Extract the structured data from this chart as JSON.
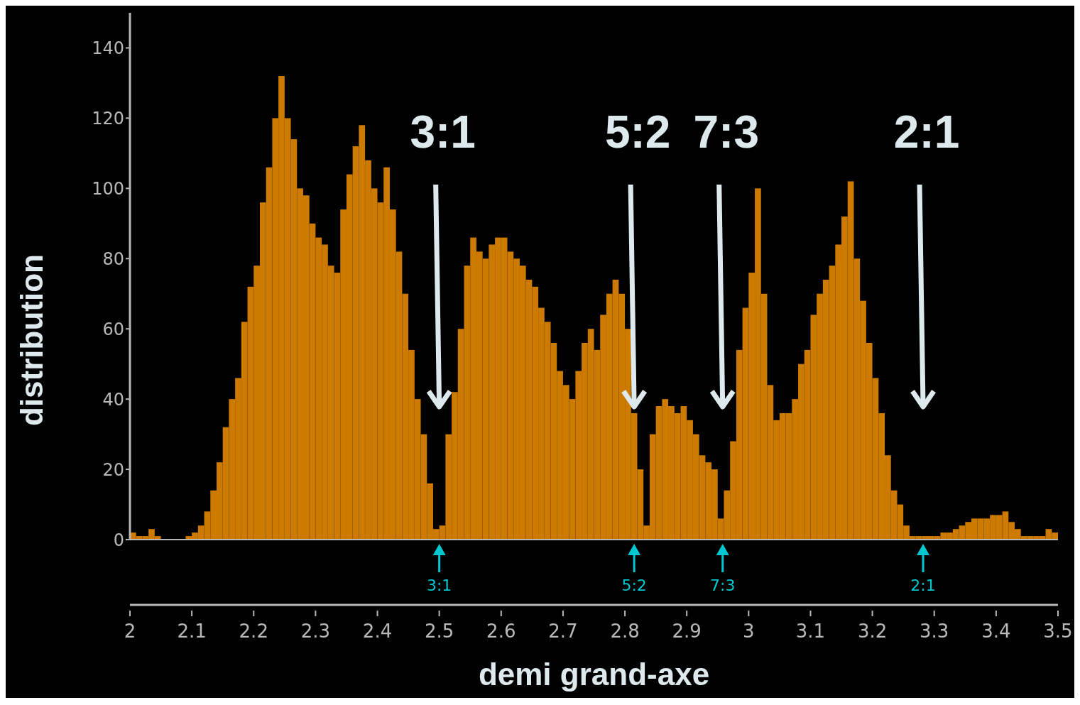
{
  "chart_data": {
    "type": "histogram",
    "xlabel": "demi grand-axe",
    "ylabel": "distribution",
    "bins": [
      2,
      2.01,
      2.02,
      2.03,
      2.04,
      2.05,
      2.06,
      2.07,
      2.08,
      2.09,
      2.1,
      2.11,
      2.12,
      2.13,
      2.14,
      2.15,
      2.16,
      2.17,
      2.18,
      2.19,
      2.2,
      2.21,
      2.22,
      2.23,
      2.24,
      2.25,
      2.26,
      2.27,
      2.28,
      2.29,
      2.3,
      2.31,
      2.32,
      2.33,
      2.34,
      2.35,
      2.36,
      2.37,
      2.38,
      2.39,
      2.4,
      2.41,
      2.42,
      2.43,
      2.44,
      2.45,
      2.46,
      2.47,
      2.48,
      2.49,
      2.5,
      2.51,
      2.52,
      2.53,
      2.54,
      2.55,
      2.56,
      2.57,
      2.58,
      2.59,
      2.6,
      2.61,
      2.62,
      2.63,
      2.64,
      2.65,
      2.66,
      2.67,
      2.68,
      2.69,
      2.7,
      2.71,
      2.72,
      2.73,
      2.74,
      2.75,
      2.76,
      2.77,
      2.78,
      2.79,
      2.8,
      2.81,
      2.82,
      2.83,
      2.84,
      2.85,
      2.86,
      2.87,
      2.88,
      2.89,
      2.9,
      2.91,
      2.92,
      2.93,
      2.94,
      2.95,
      2.96,
      2.97,
      2.98,
      2.99,
      3,
      3.01,
      3.02,
      3.03,
      3.04,
      3.05,
      3.06,
      3.07,
      3.08,
      3.09,
      3.1,
      3.11,
      3.12,
      3.13,
      3.14,
      3.15,
      3.16,
      3.17,
      3.18,
      3.19,
      3.2,
      3.21,
      3.22,
      3.23,
      3.24,
      3.25,
      3.26,
      3.27,
      3.28,
      3.29,
      3.3,
      3.31,
      3.32,
      3.33,
      3.34,
      3.35,
      3.36,
      3.37,
      3.38,
      3.39,
      3.4,
      3.41,
      3.42,
      3.43,
      3.44,
      3.45,
      3.46,
      3.47,
      3.48,
      3.49,
      3.5
    ],
    "values": [
      2,
      1,
      1,
      3,
      1,
      0,
      0,
      0,
      0,
      1,
      2,
      4,
      8,
      14,
      22,
      32,
      40,
      46,
      62,
      72,
      78,
      96,
      106,
      120,
      132,
      120,
      114,
      100,
      98,
      90,
      86,
      84,
      78,
      76,
      94,
      104,
      112,
      118,
      108,
      100,
      96,
      106,
      94,
      82,
      70,
      54,
      40,
      30,
      16,
      3,
      4,
      30,
      42,
      60,
      78,
      86,
      82,
      80,
      84,
      86,
      86,
      82,
      80,
      78,
      74,
      72,
      66,
      62,
      56,
      48,
      44,
      40,
      48,
      56,
      60,
      54,
      64,
      70,
      74,
      70,
      60,
      36,
      20,
      4,
      30,
      38,
      40,
      38,
      36,
      38,
      34,
      30,
      24,
      22,
      20,
      6,
      14,
      28,
      54,
      66,
      76,
      100,
      70,
      44,
      34,
      36,
      36,
      40,
      50,
      54,
      64,
      70,
      74,
      78,
      84,
      92,
      102,
      80,
      68,
      56,
      46,
      36,
      24,
      14,
      10,
      4,
      1,
      1,
      1,
      1,
      1,
      2,
      2,
      3,
      4,
      5,
      6,
      6,
      6,
      7,
      7,
      8,
      5,
      3,
      1,
      1,
      1,
      1,
      3,
      2
    ],
    "color": "#cc7a00",
    "xlim": [
      2,
      3.5
    ],
    "xticks": [
      2,
      2.1,
      2.2,
      2.3,
      2.4,
      2.5,
      2.6,
      2.7,
      2.8,
      2.9,
      3,
      3.1,
      3.2,
      3.3,
      3.4,
      3.5
    ],
    "ylim": [
      0,
      150
    ],
    "yticks": [
      0,
      20,
      40,
      60,
      80,
      100,
      120,
      140
    ],
    "grid": false,
    "legend": false,
    "annotations": [
      "3:1",
      "5:2",
      "7:3",
      "2:1",
      {
        "text": "3:1",
        "x": 2.5,
        "y": 0
      },
      {
        "text": "5:2",
        "x": 2.815,
        "y": 0
      },
      {
        "text": "7:3",
        "x": 2.958,
        "y": 0
      },
      {
        "text": "2:1",
        "x": 3.282,
        "y": 0
      }
    ]
  }
}
